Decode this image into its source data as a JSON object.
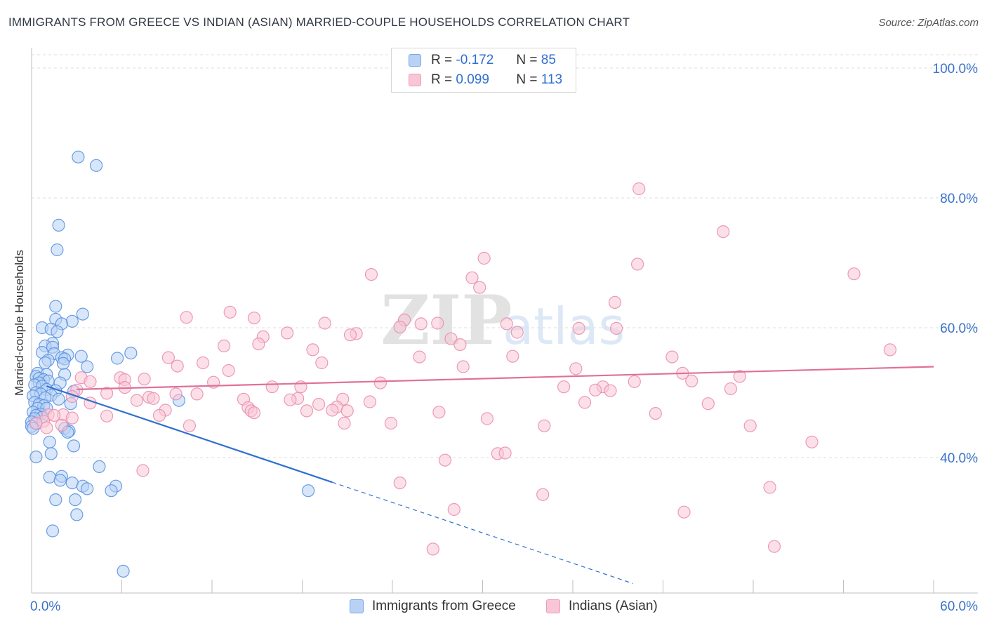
{
  "header": {
    "title": "IMMIGRANTS FROM GREECE VS INDIAN (ASIAN) MARRIED-COUPLE HOUSEHOLDS CORRELATION CHART",
    "source": "Source: ZipAtlas.com"
  },
  "watermark": {
    "zip": "ZIP",
    "atlas": "atlas"
  },
  "legend": {
    "r_label": "R =",
    "n_label": "N =",
    "series1": {
      "r": "-0.172",
      "n": "85"
    },
    "series2": {
      "r": "0.099",
      "n": "113"
    }
  },
  "colors": {
    "blue_fill": "#b8d2f5",
    "blue_stroke": "#5b93e0",
    "blue_line": "#2f6fd0",
    "pink_fill": "#f9c6d6",
    "pink_stroke": "#ea8fb0",
    "pink_line": "#e0709a",
    "axis_text": "#3a73c9",
    "grid": "#dddddd"
  },
  "chart_data": {
    "type": "scatter",
    "title": "IMMIGRANTS FROM GREECE VS INDIAN (ASIAN) MARRIED-COUPLE HOUSEHOLDS CORRELATION CHART",
    "xlabel": "",
    "ylabel": "Married-couple Households",
    "xlim": [
      0,
      60
    ],
    "ylim": [
      20,
      102
    ],
    "x_tick_labels": {
      "left": "0.0%",
      "right": "60.0%"
    },
    "y_ticks": [
      {
        "value": 40,
        "label": "40.0%"
      },
      {
        "value": 60,
        "label": "60.0%"
      },
      {
        "value": 80,
        "label": "80.0%"
      },
      {
        "value": 100,
        "label": "100.0%"
      }
    ],
    "grid": true,
    "legend_position": "top-center",
    "series": [
      {
        "name": "Immigrants from Greece",
        "color": "#5b93e0",
        "r": -0.172,
        "n": 85,
        "trend": {
          "x0": 1.0,
          "y0": 51.0,
          "x1": 20.0,
          "y1": 36.2,
          "dash_to_x": 40.0,
          "dash_to_y": 20.6
        },
        "points": [
          [
            3.1,
            86.3
          ],
          [
            4.3,
            85.0
          ],
          [
            1.8,
            75.8
          ],
          [
            1.7,
            72.0
          ],
          [
            1.6,
            63.3
          ],
          [
            3.4,
            62.1
          ],
          [
            1.6,
            61.3
          ],
          [
            2.7,
            61.0
          ],
          [
            2.0,
            60.6
          ],
          [
            0.7,
            60.0
          ],
          [
            1.3,
            59.8
          ],
          [
            1.7,
            59.4
          ],
          [
            1.4,
            57.6
          ],
          [
            0.9,
            57.2
          ],
          [
            1.4,
            57.0
          ],
          [
            0.7,
            56.2
          ],
          [
            1.5,
            56.0
          ],
          [
            2.4,
            55.8
          ],
          [
            3.3,
            55.6
          ],
          [
            6.6,
            56.1
          ],
          [
            2.0,
            55.4
          ],
          [
            2.2,
            55.2
          ],
          [
            1.1,
            55.0
          ],
          [
            5.7,
            55.3
          ],
          [
            0.9,
            54.6
          ],
          [
            2.1,
            54.5
          ],
          [
            3.7,
            54.0
          ],
          [
            0.4,
            53.0
          ],
          [
            2.2,
            52.8
          ],
          [
            1.0,
            52.8
          ],
          [
            0.3,
            52.5
          ],
          [
            0.5,
            52.2
          ],
          [
            0.8,
            52.0
          ],
          [
            1.1,
            51.8
          ],
          [
            0.5,
            51.5
          ],
          [
            1.9,
            51.5
          ],
          [
            0.2,
            51.2
          ],
          [
            0.7,
            51.0
          ],
          [
            1.0,
            50.5
          ],
          [
            1.6,
            50.3
          ],
          [
            2.8,
            50.2
          ],
          [
            0.3,
            50.0
          ],
          [
            0.6,
            49.8
          ],
          [
            1.3,
            49.6
          ],
          [
            0.1,
            49.5
          ],
          [
            0.9,
            49.2
          ],
          [
            1.8,
            49.0
          ],
          [
            9.8,
            48.8
          ],
          [
            0.2,
            48.5
          ],
          [
            0.5,
            48.2
          ],
          [
            0.8,
            48.0
          ],
          [
            2.6,
            48.3
          ],
          [
            0.4,
            47.6
          ],
          [
            1.0,
            47.6
          ],
          [
            0.1,
            47.0
          ],
          [
            0.6,
            46.7
          ],
          [
            0.3,
            46.5
          ],
          [
            0.7,
            46.2
          ],
          [
            0.2,
            46.0
          ],
          [
            0.0,
            45.5
          ],
          [
            0.3,
            45.2
          ],
          [
            0.0,
            44.8
          ],
          [
            0.1,
            44.5
          ],
          [
            2.2,
            44.5
          ],
          [
            2.5,
            44.1
          ],
          [
            2.4,
            43.9
          ],
          [
            1.2,
            42.4
          ],
          [
            2.8,
            41.8
          ],
          [
            1.3,
            40.6
          ],
          [
            0.3,
            40.1
          ],
          [
            4.5,
            38.6
          ],
          [
            2.0,
            37.1
          ],
          [
            1.2,
            37.0
          ],
          [
            1.9,
            36.5
          ],
          [
            2.7,
            36.1
          ],
          [
            3.4,
            35.6
          ],
          [
            5.6,
            35.6
          ],
          [
            3.7,
            35.2
          ],
          [
            5.3,
            34.9
          ],
          [
            18.4,
            34.9
          ],
          [
            2.9,
            33.5
          ],
          [
            1.6,
            33.5
          ],
          [
            3.0,
            31.2
          ],
          [
            1.4,
            28.7
          ],
          [
            6.1,
            22.5
          ]
        ]
      },
      {
        "name": "Indians (Asian)",
        "color": "#ea8fb0",
        "r": 0.099,
        "n": 113,
        "trend": {
          "x0": 3.0,
          "y0": 50.5,
          "x1": 60.0,
          "y1": 54.0
        },
        "points": [
          [
            40.4,
            81.4
          ],
          [
            46.0,
            74.8
          ],
          [
            30.1,
            70.7
          ],
          [
            40.3,
            69.8
          ],
          [
            54.7,
            68.3
          ],
          [
            22.6,
            68.2
          ],
          [
            29.3,
            67.7
          ],
          [
            29.8,
            66.2
          ],
          [
            38.8,
            63.9
          ],
          [
            13.2,
            62.4
          ],
          [
            10.3,
            61.6
          ],
          [
            14.8,
            61.5
          ],
          [
            24.8,
            61.2
          ],
          [
            19.5,
            60.7
          ],
          [
            25.9,
            60.6
          ],
          [
            27.0,
            60.7
          ],
          [
            31.6,
            60.6
          ],
          [
            24.5,
            60.1
          ],
          [
            36.4,
            59.9
          ],
          [
            38.9,
            59.9
          ],
          [
            32.3,
            59.3
          ],
          [
            17.0,
            59.2
          ],
          [
            21.6,
            59.1
          ],
          [
            21.2,
            58.9
          ],
          [
            15.4,
            58.6
          ],
          [
            27.9,
            58.3
          ],
          [
            12.8,
            57.2
          ],
          [
            15.1,
            57.5
          ],
          [
            28.5,
            57.4
          ],
          [
            18.7,
            56.6
          ],
          [
            57.1,
            56.6
          ],
          [
            9.1,
            55.4
          ],
          [
            25.8,
            55.5
          ],
          [
            32.0,
            55.6
          ],
          [
            42.6,
            55.5
          ],
          [
            11.4,
            54.6
          ],
          [
            19.3,
            54.6
          ],
          [
            9.7,
            54.1
          ],
          [
            28.7,
            54.0
          ],
          [
            36.2,
            53.7
          ],
          [
            13.1,
            53.4
          ],
          [
            43.3,
            53.0
          ],
          [
            47.1,
            52.5
          ],
          [
            3.3,
            52.3
          ],
          [
            5.9,
            52.3
          ],
          [
            7.5,
            52.1
          ],
          [
            6.2,
            52.0
          ],
          [
            3.9,
            51.7
          ],
          [
            12.1,
            51.6
          ],
          [
            23.2,
            51.5
          ],
          [
            40.1,
            51.7
          ],
          [
            43.9,
            51.8
          ],
          [
            16.0,
            50.9
          ],
          [
            17.9,
            50.9
          ],
          [
            35.4,
            50.9
          ],
          [
            38.0,
            50.9
          ],
          [
            46.5,
            50.6
          ],
          [
            6.2,
            50.8
          ],
          [
            3.0,
            50.4
          ],
          [
            37.5,
            50.4
          ],
          [
            38.5,
            50.3
          ],
          [
            5.0,
            49.9
          ],
          [
            9.6,
            49.8
          ],
          [
            11.0,
            49.8
          ],
          [
            2.7,
            49.4
          ],
          [
            7.8,
            49.3
          ],
          [
            8.1,
            49.1
          ],
          [
            17.7,
            49.1
          ],
          [
            14.1,
            49.0
          ],
          [
            17.2,
            48.9
          ],
          [
            20.7,
            49.0
          ],
          [
            7.0,
            48.8
          ],
          [
            22.5,
            48.6
          ],
          [
            36.8,
            48.5
          ],
          [
            19.1,
            48.2
          ],
          [
            3.9,
            48.4
          ],
          [
            45.0,
            48.3
          ],
          [
            20.3,
            47.8
          ],
          [
            14.4,
            47.7
          ],
          [
            20.0,
            47.3
          ],
          [
            21.0,
            47.2
          ],
          [
            18.3,
            47.2
          ],
          [
            8.9,
            47.3
          ],
          [
            14.6,
            47.2
          ],
          [
            27.1,
            47.0
          ],
          [
            14.8,
            46.9
          ],
          [
            8.5,
            46.5
          ],
          [
            41.5,
            46.8
          ],
          [
            1.1,
            46.6
          ],
          [
            2.1,
            46.6
          ],
          [
            1.5,
            46.5
          ],
          [
            5.0,
            46.4
          ],
          [
            30.3,
            46.0
          ],
          [
            2.7,
            46.1
          ],
          [
            0.8,
            45.6
          ],
          [
            0.3,
            45.3
          ],
          [
            2.0,
            45.0
          ],
          [
            20.8,
            45.3
          ],
          [
            23.9,
            45.3
          ],
          [
            10.5,
            44.9
          ],
          [
            34.1,
            44.9
          ],
          [
            47.8,
            44.9
          ],
          [
            1.0,
            44.6
          ],
          [
            51.9,
            42.4
          ],
          [
            27.5,
            39.6
          ],
          [
            31.0,
            40.6
          ],
          [
            31.5,
            40.7
          ],
          [
            7.4,
            38.0
          ],
          [
            24.5,
            36.1
          ],
          [
            49.1,
            35.4
          ],
          [
            34.0,
            34.3
          ],
          [
            28.1,
            32.0
          ],
          [
            43.4,
            31.6
          ],
          [
            26.7,
            25.9
          ],
          [
            49.4,
            26.3
          ]
        ]
      }
    ]
  },
  "bottom_legend": {
    "series1": "Immigrants from Greece",
    "series2": "Indians (Asian)"
  }
}
